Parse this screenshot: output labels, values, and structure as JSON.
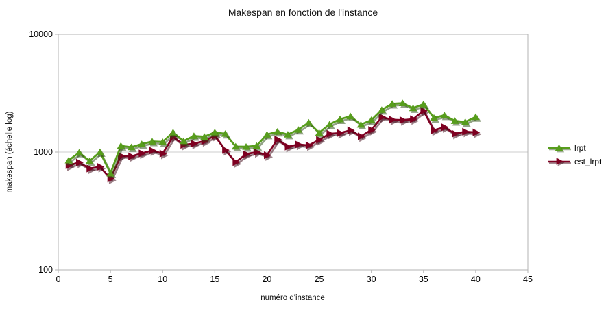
{
  "title": "Makespan en fonction de l'instance",
  "colors": {
    "background": "#ffffff",
    "grid": "#cccccc",
    "frame": "#b3b3b3",
    "text": "#000000",
    "lrpt_green": "#579d1c",
    "est_lrpt_dark_red": "#7e0021"
  },
  "chart_data": {
    "type": "line",
    "title": "Makespan en fonction de l'instance",
    "xlabel": "numéro d'instance",
    "ylabel": "makespan (échelle log)",
    "y_scale": "log10",
    "xlim": [
      0,
      45
    ],
    "ylim": [
      100,
      10000
    ],
    "x_ticks": [
      0,
      5,
      10,
      15,
      20,
      25,
      30,
      35,
      40,
      45
    ],
    "y_ticks": [
      100,
      1000,
      10000
    ],
    "grid": "horizontal major gridlines only",
    "legend_position": "right",
    "x": [
      1,
      2,
      3,
      4,
      5,
      6,
      7,
      8,
      9,
      10,
      11,
      12,
      13,
      14,
      15,
      16,
      17,
      18,
      19,
      20,
      21,
      22,
      23,
      24,
      25,
      26,
      27,
      28,
      29,
      30,
      31,
      32,
      33,
      34,
      35,
      36,
      37,
      38,
      39,
      40
    ],
    "series": [
      {
        "name": "lrpt",
        "color": "#579d1c",
        "marker": "triangle-up",
        "values": [
          850,
          990,
          840,
          1000,
          660,
          1130,
          1100,
          1170,
          1230,
          1220,
          1470,
          1240,
          1370,
          1350,
          1470,
          1430,
          1115,
          1110,
          1130,
          1410,
          1490,
          1410,
          1550,
          1780,
          1460,
          1720,
          1900,
          2010,
          1710,
          1870,
          2280,
          2570,
          2600,
          2360,
          2550,
          1950,
          2050,
          1840,
          1800,
          1985
        ]
      },
      {
        "name": "est_lrpt",
        "color": "#7e0021",
        "marker": "triangle-right",
        "values": [
          770,
          815,
          725,
          750,
          595,
          930,
          920,
          975,
          1030,
          970,
          1350,
          1150,
          1180,
          1240,
          1375,
          1040,
          820,
          960,
          1000,
          940,
          1280,
          1110,
          1160,
          1140,
          1270,
          1430,
          1450,
          1530,
          1360,
          1540,
          1980,
          1880,
          1865,
          1900,
          2240,
          1530,
          1625,
          1430,
          1490,
          1470
        ]
      }
    ]
  }
}
